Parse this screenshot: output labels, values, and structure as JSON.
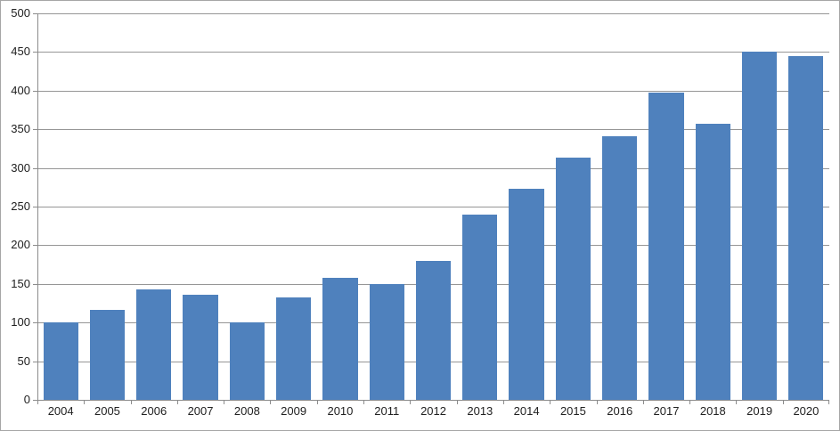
{
  "chart_data": {
    "type": "bar",
    "title": "",
    "xlabel": "",
    "ylabel": "",
    "categories": [
      "2004",
      "2005",
      "2006",
      "2007",
      "2008",
      "2009",
      "2010",
      "2011",
      "2012",
      "2013",
      "2014",
      "2015",
      "2016",
      "2017",
      "2018",
      "2019",
      "2020"
    ],
    "values": [
      100,
      116,
      143,
      136,
      100,
      133,
      158,
      150,
      180,
      240,
      273,
      313,
      341,
      398,
      357,
      450,
      445
    ],
    "ylim": [
      0,
      500
    ],
    "ytick_step": 50,
    "yticks": [
      0,
      50,
      100,
      150,
      200,
      250,
      300,
      350,
      400,
      450,
      500
    ],
    "grid": "horizontal",
    "legend": "none",
    "bar_gap_fraction": 0.25,
    "colors": {
      "bar": "#4F81BD",
      "gridline": "#969696",
      "axis": "#8C8C8C",
      "text": "#212121",
      "frame_border": "#A6A6A6",
      "background": "#FFFFFF"
    }
  }
}
